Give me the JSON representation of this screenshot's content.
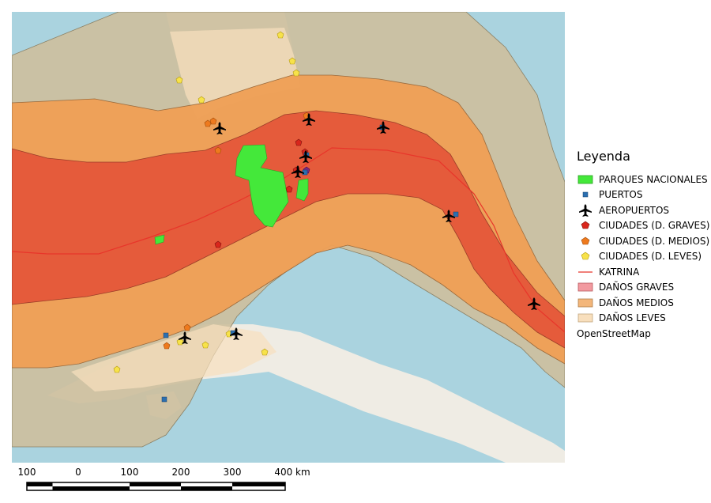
{
  "legend": {
    "title": "Leyenda",
    "items": [
      {
        "key": "parks",
        "label": "PARQUES NACIONALES",
        "color": "#44e83a"
      },
      {
        "key": "ports",
        "label": "PUERTOS",
        "color": "#2b6fb0"
      },
      {
        "key": "airports",
        "label": "AEROPUERTOS",
        "color": "#000000"
      },
      {
        "key": "cities-severe",
        "label": "CIUDADES (D. GRAVES)",
        "color": "#d9261c"
      },
      {
        "key": "cities-medium",
        "label": "CIUDADES (D. MEDIOS)",
        "color": "#ee7a1e"
      },
      {
        "key": "cities-light",
        "label": "CIUDADES (D. LEVES)",
        "color": "#f7e24a"
      },
      {
        "key": "katrina",
        "label": "KATRINA",
        "color": "#e8352a"
      },
      {
        "key": "damage-severe",
        "label": "DAÑOS GRAVES",
        "color": "#f29aa0"
      },
      {
        "key": "damage-medium",
        "label": "DAÑOS MEDIOS",
        "color": "#f3b67a"
      },
      {
        "key": "damage-light",
        "label": "DAÑOS LEVES",
        "color": "#f8dfbd"
      },
      {
        "key": "osm",
        "label": "OpenStreetMap",
        "color": ""
      }
    ]
  },
  "scalebar": {
    "labels": [
      "100",
      "0",
      "100",
      "200",
      "300",
      "400 km"
    ]
  },
  "colors": {
    "sea": "#aad3df",
    "land": "#f2efe9",
    "severe_fill": "#e4573a",
    "medium_fill": "#ef9f55",
    "light_fill": "#e2c8a0",
    "outer_zone": "#cdbf9e",
    "track": "#e8352a"
  }
}
